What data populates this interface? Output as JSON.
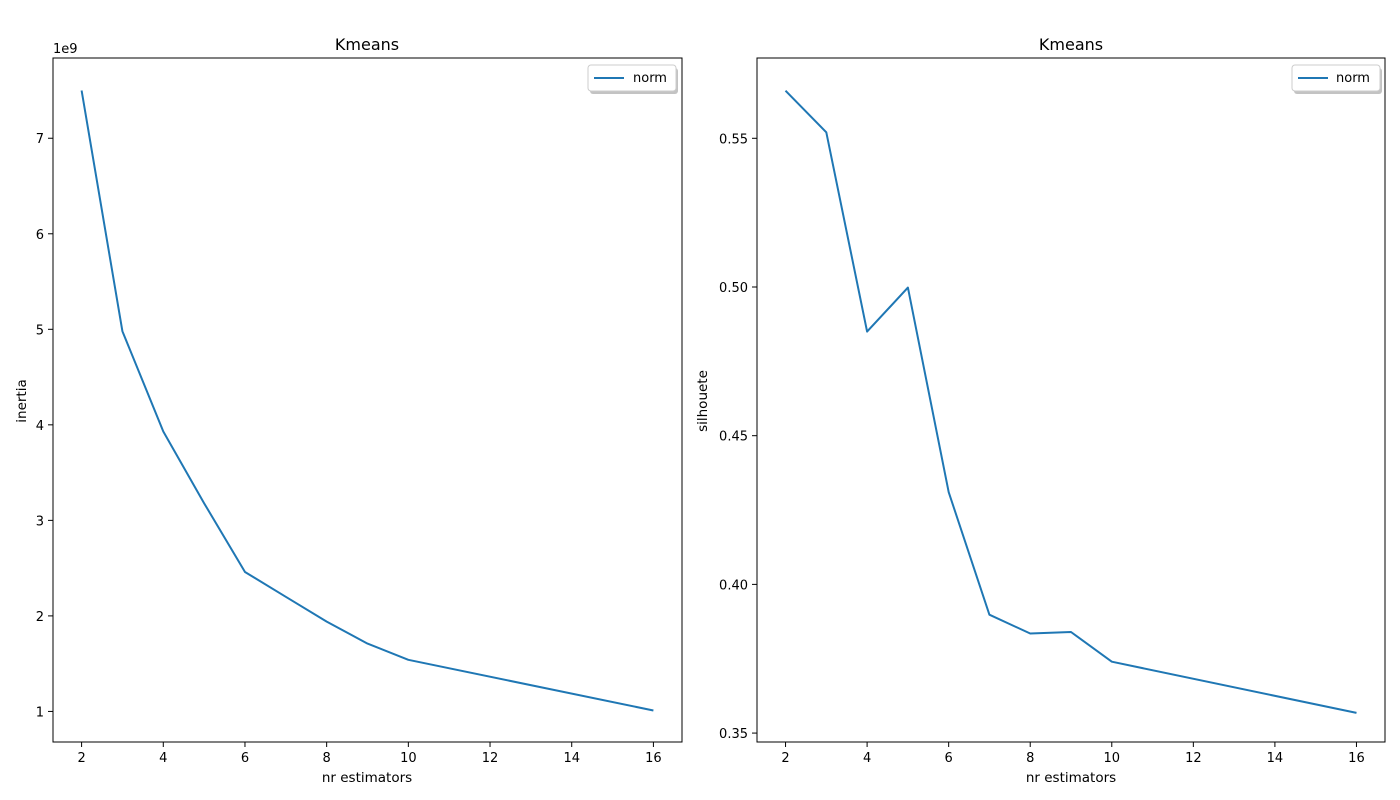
{
  "chart_data": [
    {
      "type": "line",
      "title": "Kmeans",
      "xlabel": "nr estimators",
      "ylabel": "inertia",
      "y_offset_label": "1e9",
      "xlim": [
        1.3,
        16.7
      ],
      "ylim": [
        0.68,
        7.84
      ],
      "x_ticks": [
        2,
        4,
        6,
        8,
        10,
        12,
        14,
        16
      ],
      "y_ticks": [
        1,
        2,
        3,
        4,
        5,
        6,
        7
      ],
      "grid": false,
      "legend_position": "top-right",
      "series": [
        {
          "name": "norm",
          "color": "#1f77b4",
          "x": [
            2,
            3,
            4,
            5,
            6,
            7,
            8,
            9,
            10,
            16
          ],
          "y": [
            7.5,
            4.98,
            3.93,
            3.18,
            2.46,
            2.2,
            1.94,
            1.71,
            1.54,
            1.01
          ]
        }
      ]
    },
    {
      "type": "line",
      "title": "Kmeans",
      "xlabel": "nr estimators",
      "ylabel": "silhouete",
      "xlim": [
        1.3,
        16.7
      ],
      "ylim": [
        0.347,
        0.577
      ],
      "x_ticks": [
        2,
        4,
        6,
        8,
        10,
        12,
        14,
        16
      ],
      "y_ticks": [
        0.35,
        0.4,
        0.45,
        0.5,
        0.55
      ],
      "y_tick_labels": [
        "0.35",
        "0.40",
        "0.45",
        "0.50",
        "0.55"
      ],
      "grid": false,
      "legend_position": "top-right",
      "series": [
        {
          "name": "norm",
          "color": "#1f77b4",
          "x": [
            2,
            3,
            4,
            5,
            6,
            7,
            8,
            9,
            10,
            16
          ],
          "y": [
            0.566,
            0.552,
            0.485,
            0.4998,
            0.431,
            0.3898,
            0.3835,
            0.384,
            0.374,
            0.3568
          ]
        }
      ]
    }
  ]
}
